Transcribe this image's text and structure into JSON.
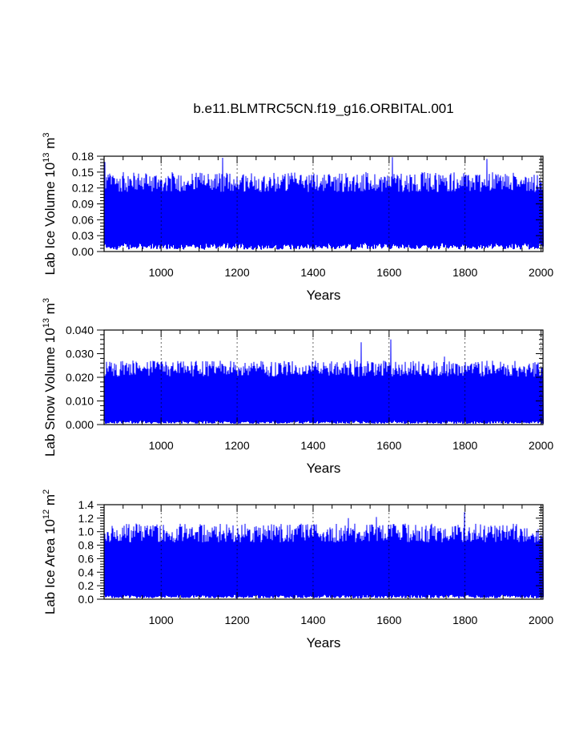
{
  "chart_data": [
    {
      "type": "line",
      "title": "b.e11.BLMTRC5CN.f19_g16.ORBITAL.001",
      "ylabel": {
        "prefix": "Lab Ice Volume 10",
        "exp": "13",
        "unit": " m",
        "unit_exp": "3"
      },
      "xlabel": "Years",
      "xlim": [
        850,
        2005
      ],
      "ylim": [
        0.0,
        0.18
      ],
      "x_ticks": [
        1000,
        1200,
        1400,
        1600,
        1800,
        2000
      ],
      "x_tick_labels": [
        "1000",
        "1200",
        "1400",
        "1600",
        "1800",
        "2000"
      ],
      "y_ticks": [
        0.0,
        0.03,
        0.06,
        0.09,
        0.12,
        0.15,
        0.18
      ],
      "y_tick_labels": [
        "0.00",
        "0.03",
        "0.06",
        "0.09",
        "0.12",
        "0.15",
        "0.18"
      ],
      "grid": "vertical dotted at x ticks",
      "series": [
        {
          "name": "Lab Ice Volume",
          "color": "#0000ff",
          "min_typical": 0.01,
          "max_typical": 0.15,
          "peak": 0.178,
          "style": "dense annual oscillation 850-2005"
        }
      ]
    },
    {
      "type": "line",
      "title": "",
      "ylabel": {
        "prefix": "Lab Snow Volume 10",
        "exp": "13",
        "unit": " m",
        "unit_exp": "3"
      },
      "xlabel": "Years",
      "xlim": [
        850,
        2005
      ],
      "ylim": [
        0.0,
        0.04
      ],
      "x_ticks": [
        1000,
        1200,
        1400,
        1600,
        1800,
        2000
      ],
      "x_tick_labels": [
        "1000",
        "1200",
        "1400",
        "1600",
        "1800",
        "2000"
      ],
      "y_ticks": [
        0.0,
        0.01,
        0.02,
        0.03,
        0.04
      ],
      "y_tick_labels": [
        "0.000",
        "0.010",
        "0.020",
        "0.030",
        "0.040"
      ],
      "grid": "vertical dotted at x ticks",
      "series": [
        {
          "name": "Lab Snow Volume",
          "color": "#0000ff",
          "min_typical": 0.001,
          "max_typical": 0.027,
          "peak": 0.036,
          "style": "dense annual oscillation 850-2005"
        }
      ]
    },
    {
      "type": "line",
      "title": "",
      "ylabel": {
        "prefix": "Lab Ice Area 10",
        "exp": "12",
        "unit": " m",
        "unit_exp": "2"
      },
      "xlabel": "Years",
      "xlim": [
        850,
        2005
      ],
      "ylim": [
        0.0,
        1.4
      ],
      "x_ticks": [
        1000,
        1200,
        1400,
        1600,
        1800,
        2000
      ],
      "x_tick_labels": [
        "1000",
        "1200",
        "1400",
        "1600",
        "1800",
        "2000"
      ],
      "y_ticks": [
        0.0,
        0.2,
        0.4,
        0.6,
        0.8,
        1.0,
        1.2,
        1.4
      ],
      "y_tick_labels": [
        "0.0",
        "0.2",
        "0.4",
        "0.6",
        "0.8",
        "1.0",
        "1.2",
        "1.4"
      ],
      "grid": "vertical dotted at x ticks",
      "series": [
        {
          "name": "Lab Ice Area",
          "color": "#0000ff",
          "min_typical": 0.04,
          "max_typical": 1.12,
          "peak": 1.29,
          "style": "dense annual oscillation 850-2005"
        }
      ]
    }
  ]
}
